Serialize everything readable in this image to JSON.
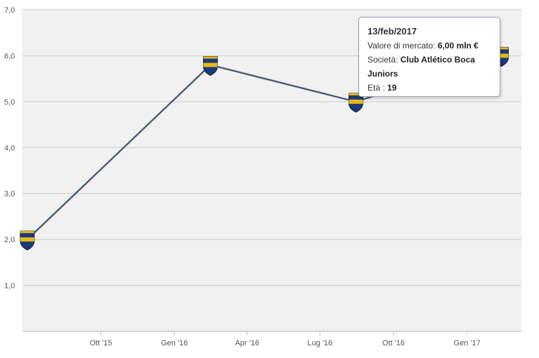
{
  "chart_data": {
    "type": "line",
    "title": "",
    "xlabel": "",
    "ylabel": "",
    "ylim": [
      0,
      7
    ],
    "y_ticks": [
      "1,0",
      "2,0",
      "3,0",
      "4,0",
      "5,0",
      "6,0",
      "7,0"
    ],
    "x_ticks": [
      "Ott '15",
      "Gen '16",
      "Apr '16",
      "Lug '16",
      "Ott '16",
      "Gen '17"
    ],
    "grid": true,
    "series": [
      {
        "color": "#4a5b73",
        "marker": "club-crest-icon",
        "points": [
          {
            "x": "2015-07-01",
            "y": 2.0
          },
          {
            "x": "2016-02-15",
            "y": 5.8
          },
          {
            "x": "2016-08-15",
            "y": 5.0
          },
          {
            "x": "2017-02-13",
            "y": 6.0
          }
        ]
      }
    ],
    "tooltip": {
      "date": "13/feb/2017",
      "value_label": "Valore di mercato",
      "value": "6,00 mln €",
      "club_label": "Società",
      "club": "Club Atlético Boca Juniors",
      "age_label": "Età",
      "age": "19"
    }
  }
}
